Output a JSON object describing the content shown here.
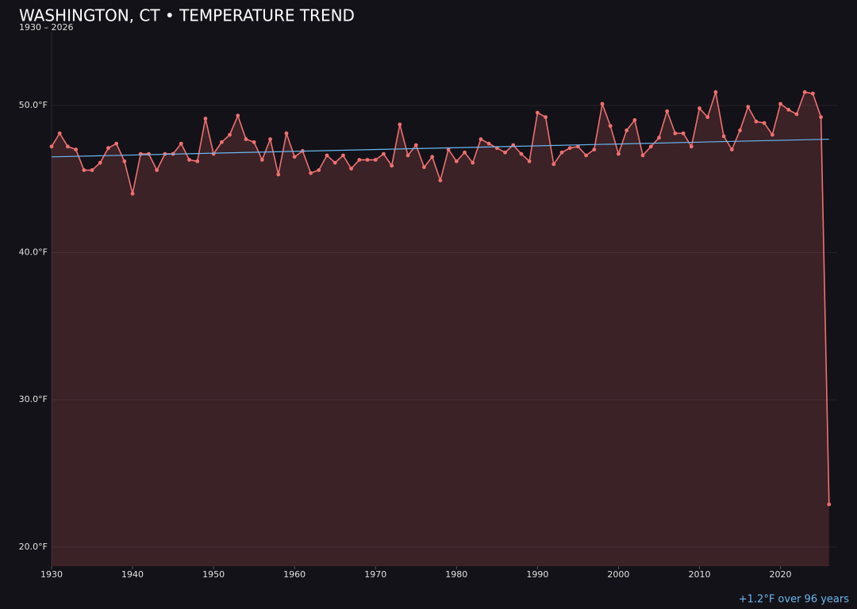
{
  "chart_data": {
    "type": "line",
    "title": "WASHINGTON, CT • TEMPERATURE TREND",
    "subtitle": "1930 – 2026",
    "annotation": "+1.2°F over 96 years",
    "x": [
      1930,
      1931,
      1932,
      1933,
      1934,
      1935,
      1936,
      1937,
      1938,
      1939,
      1940,
      1941,
      1942,
      1943,
      1944,
      1945,
      1946,
      1947,
      1948,
      1949,
      1950,
      1951,
      1952,
      1953,
      1954,
      1955,
      1956,
      1957,
      1958,
      1959,
      1960,
      1961,
      1962,
      1963,
      1964,
      1965,
      1966,
      1967,
      1968,
      1969,
      1970,
      1971,
      1972,
      1973,
      1974,
      1975,
      1976,
      1977,
      1978,
      1979,
      1980,
      1981,
      1982,
      1983,
      1984,
      1985,
      1986,
      1987,
      1988,
      1989,
      1990,
      1991,
      1992,
      1993,
      1994,
      1995,
      1996,
      1997,
      1998,
      1999,
      2000,
      2001,
      2002,
      2003,
      2004,
      2005,
      2006,
      2007,
      2008,
      2009,
      2010,
      2011,
      2012,
      2013,
      2014,
      2015,
      2016,
      2017,
      2018,
      2019,
      2020,
      2021,
      2022,
      2023,
      2024,
      2025,
      2026
    ],
    "series": [
      {
        "color": "#f07070",
        "values": [
          47.2,
          48.1,
          47.2,
          47.0,
          45.6,
          45.6,
          46.1,
          47.1,
          47.4,
          46.2,
          44.0,
          46.7,
          46.7,
          45.6,
          46.7,
          46.7,
          47.4,
          46.3,
          46.2,
          49.1,
          46.7,
          47.5,
          48.0,
          49.3,
          47.7,
          47.5,
          46.3,
          47.7,
          45.3,
          48.1,
          46.5,
          46.9,
          45.4,
          45.6,
          46.6,
          46.1,
          46.6,
          45.7,
          46.3,
          46.3,
          46.3,
          46.7,
          45.9,
          48.7,
          46.6,
          47.3,
          45.8,
          46.5,
          44.9,
          47.0,
          46.2,
          46.8,
          46.1,
          47.7,
          47.4,
          47.1,
          46.8,
          47.3,
          46.7,
          46.2,
          49.5,
          49.2,
          46.0,
          46.8,
          47.1,
          47.2,
          46.6,
          47.0,
          50.1,
          48.6,
          46.7,
          48.3,
          49.0,
          46.6,
          47.2,
          47.8,
          49.6,
          48.1,
          48.1,
          47.2,
          49.8,
          49.2,
          50.9,
          47.9,
          47.0,
          48.3,
          49.9,
          48.9,
          48.8,
          48.0,
          50.1,
          49.7,
          49.4,
          50.9,
          50.8,
          49.2,
          22.9
        ]
      }
    ],
    "trend": {
      "color": "#6cb8f0",
      "x": [
        1930,
        2026
      ],
      "values": [
        46.5,
        47.7
      ]
    },
    "xlim": [
      1930,
      2027
    ],
    "xticks": [
      1930,
      1940,
      1950,
      1960,
      1970,
      1980,
      1990,
      2000,
      2010,
      2020
    ],
    "ylim": [
      18.7,
      55
    ],
    "yticks": [
      {
        "value": 20,
        "label": "20.0°F"
      },
      {
        "value": 30,
        "label": "30.0°F"
      },
      {
        "value": 40,
        "label": "40.0°F"
      },
      {
        "value": 50,
        "label": "50.0°F"
      }
    ],
    "grid": true
  }
}
